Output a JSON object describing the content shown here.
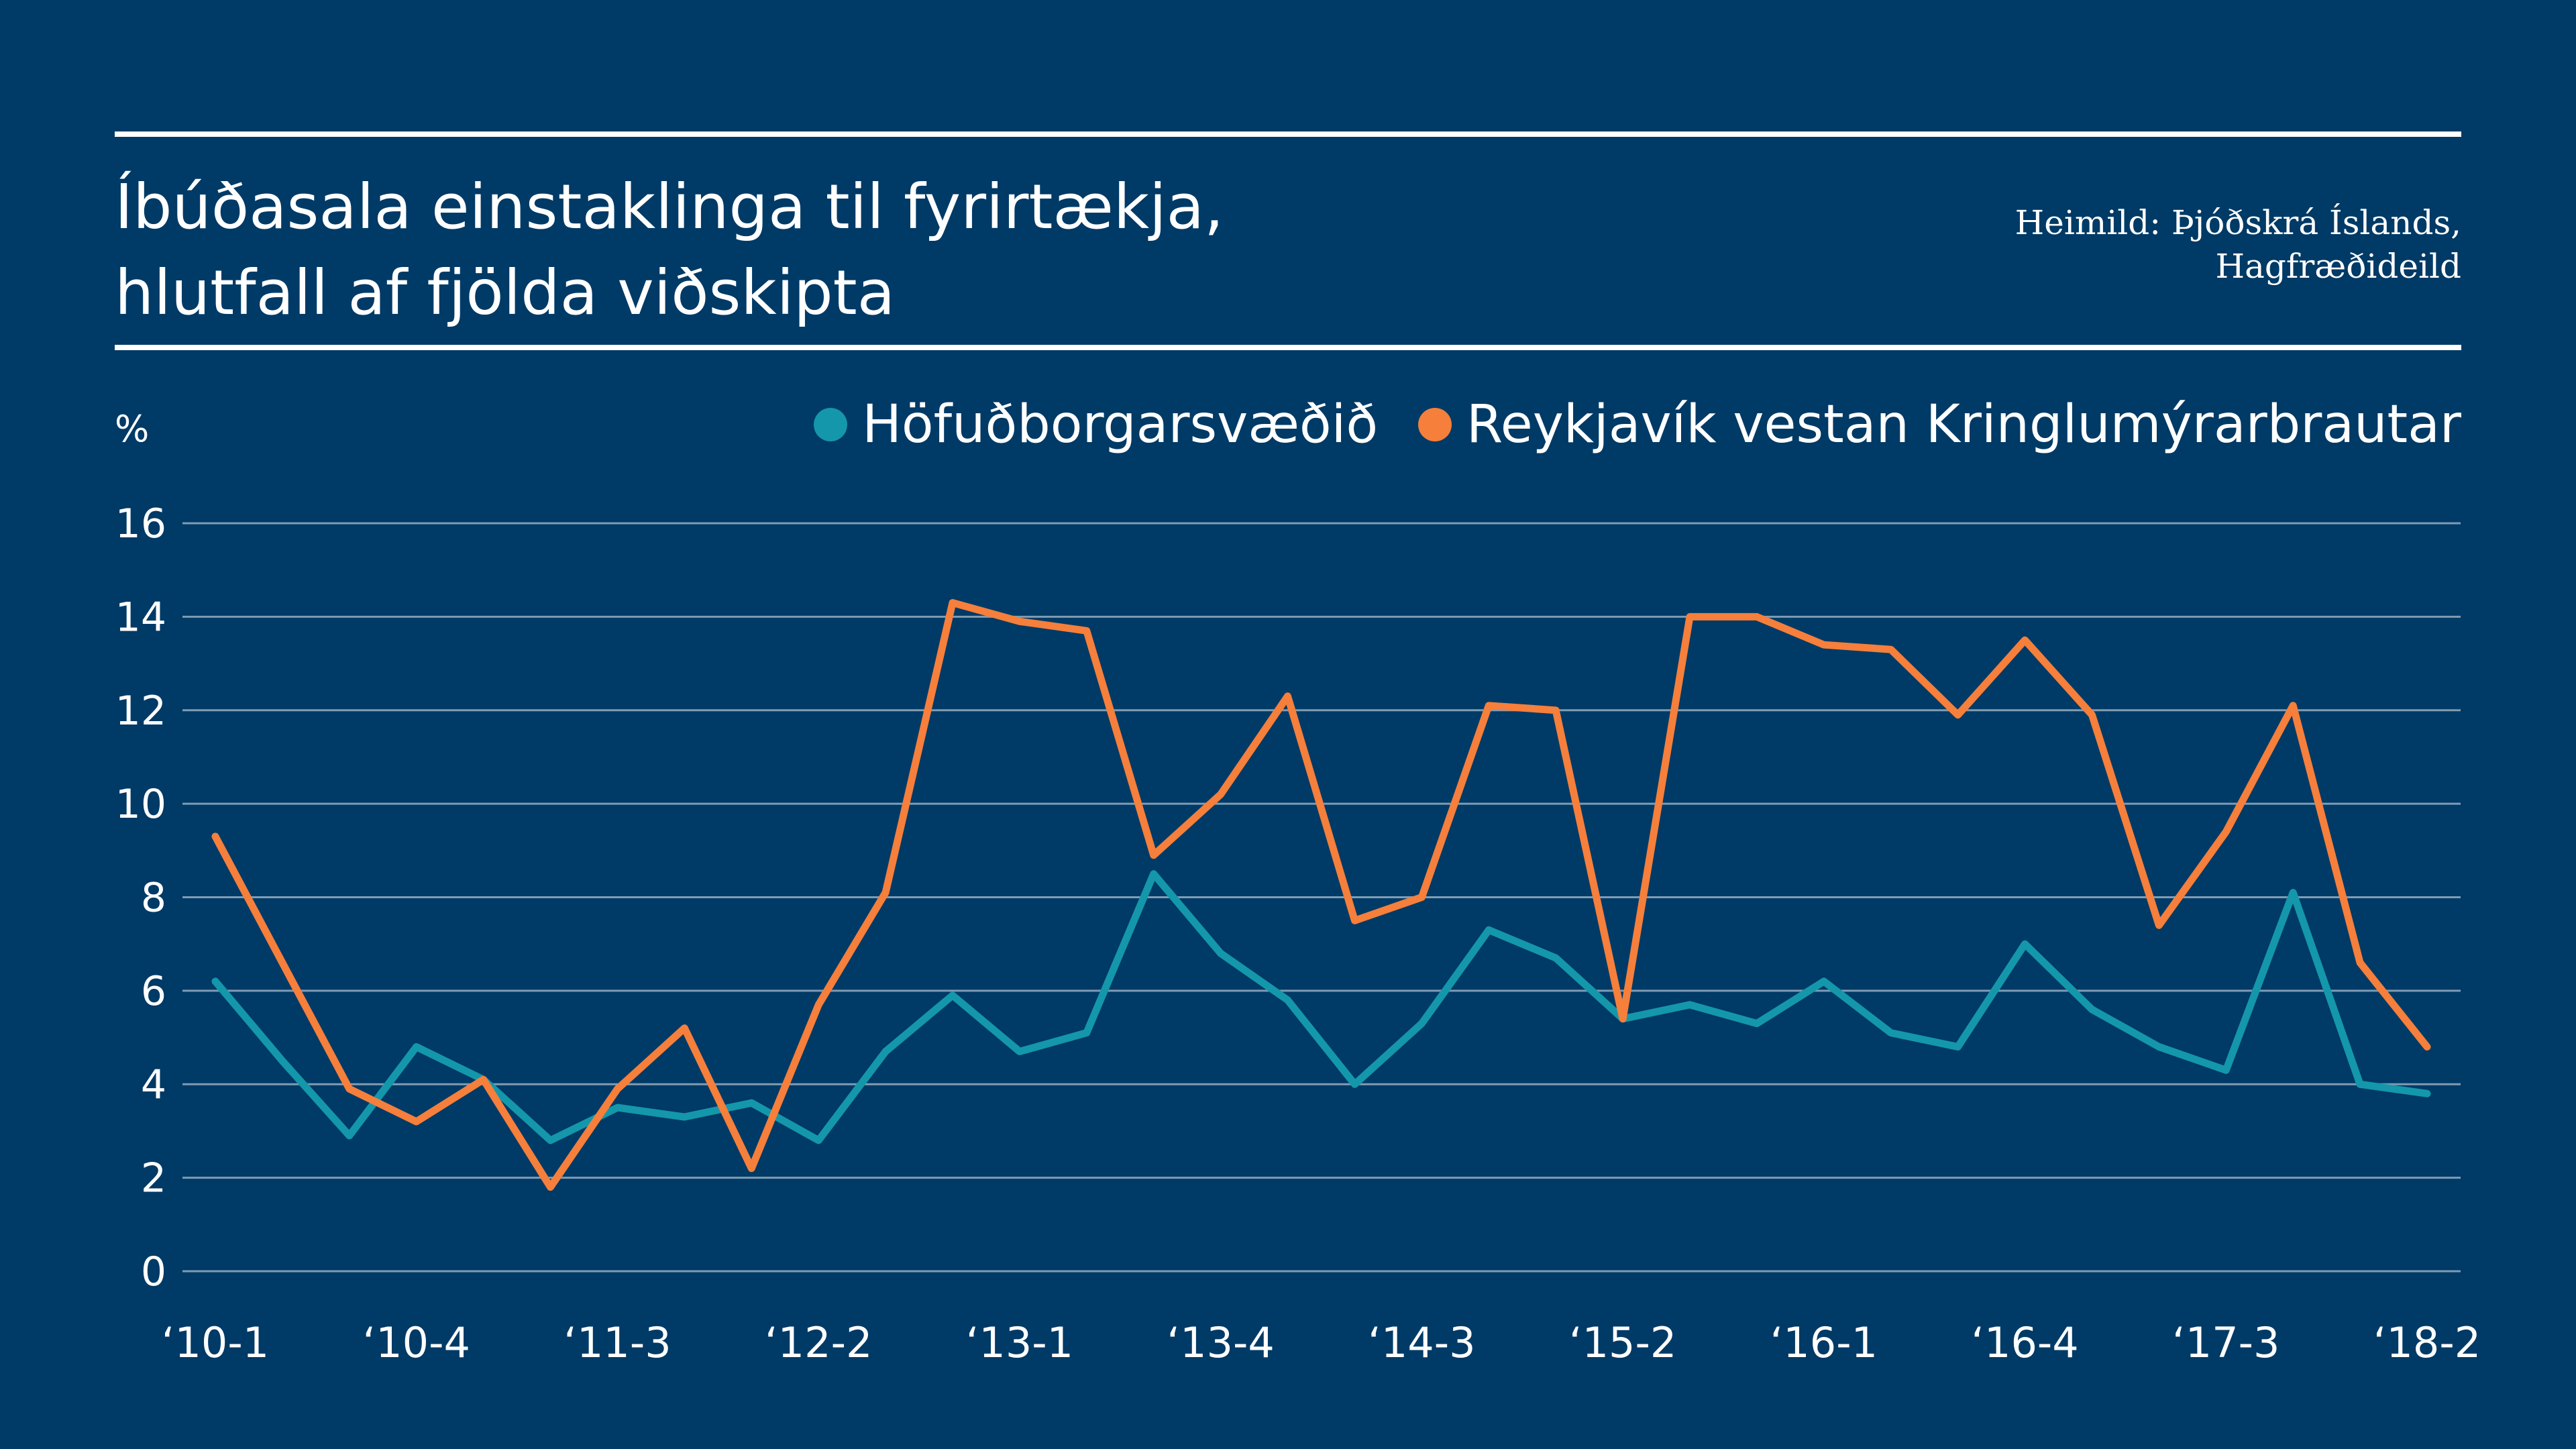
{
  "title_lines": [
    "Íbúðasala einstaklinga til fyrirtækja,",
    "hlutfall af fjölda viðskipta"
  ],
  "source_lines": [
    "Heimild: Þjóðskrá Íslands,",
    "Hagfræðideild"
  ],
  "chart_data": {
    "type": "line",
    "unit_label": "%",
    "ylim": [
      0,
      16
    ],
    "yticks": [
      0,
      2,
      4,
      6,
      8,
      10,
      12,
      14,
      16
    ],
    "grid": true,
    "legend_position": "top-right",
    "x": [
      "2010-1",
      "2010-2",
      "2010-3",
      "2010-4",
      "2011-1",
      "2011-2",
      "2011-3",
      "2011-4",
      "2012-1",
      "2012-2",
      "2012-3",
      "2012-4",
      "2013-1",
      "2013-2",
      "2013-3",
      "2013-4",
      "2014-1",
      "2014-2",
      "2014-3",
      "2014-4",
      "2015-1",
      "2015-2",
      "2015-3",
      "2015-4",
      "2016-1",
      "2016-2",
      "2016-3",
      "2016-4",
      "2017-1",
      "2017-2",
      "2017-3",
      "2017-4",
      "2018-1",
      "2018-2"
    ],
    "xtick_labels": [
      {
        "index": 0,
        "label": "‘10-1"
      },
      {
        "index": 3,
        "label": "‘10-4"
      },
      {
        "index": 6,
        "label": "‘11-3"
      },
      {
        "index": 9,
        "label": "‘12-2"
      },
      {
        "index": 12,
        "label": "‘13-1"
      },
      {
        "index": 15,
        "label": "‘13-4"
      },
      {
        "index": 18,
        "label": "‘14-3"
      },
      {
        "index": 21,
        "label": "‘15-2"
      },
      {
        "index": 24,
        "label": "‘16-1"
      },
      {
        "index": 27,
        "label": "‘16-4"
      },
      {
        "index": 30,
        "label": "‘17-3"
      },
      {
        "index": 33,
        "label": "‘18-2"
      }
    ],
    "series": [
      {
        "name": "Höfuðborgarsvæðið",
        "color": "#1497aa",
        "values": [
          6.2,
          4.5,
          2.9,
          4.8,
          4.1,
          2.8,
          3.5,
          3.3,
          3.6,
          2.8,
          4.7,
          5.9,
          4.7,
          5.1,
          8.5,
          6.8,
          5.8,
          4.0,
          5.3,
          7.3,
          6.7,
          5.4,
          5.7,
          5.3,
          6.2,
          5.1,
          4.8,
          7.0,
          5.6,
          4.8,
          4.3,
          8.1,
          4.0,
          3.8
        ]
      },
      {
        "name": "Reykjavík vestan Kringlumýrarbrautar",
        "color": "#f57f3b",
        "values": [
          9.3,
          6.6,
          3.9,
          3.2,
          4.1,
          1.8,
          3.9,
          5.2,
          2.2,
          5.7,
          8.1,
          14.3,
          13.9,
          13.7,
          8.9,
          10.2,
          12.3,
          7.5,
          8.0,
          12.1,
          12.0,
          5.4,
          14.0,
          14.0,
          13.4,
          13.3,
          11.9,
          13.5,
          11.9,
          7.4,
          9.4,
          12.1,
          6.6,
          4.8
        ]
      }
    ]
  }
}
